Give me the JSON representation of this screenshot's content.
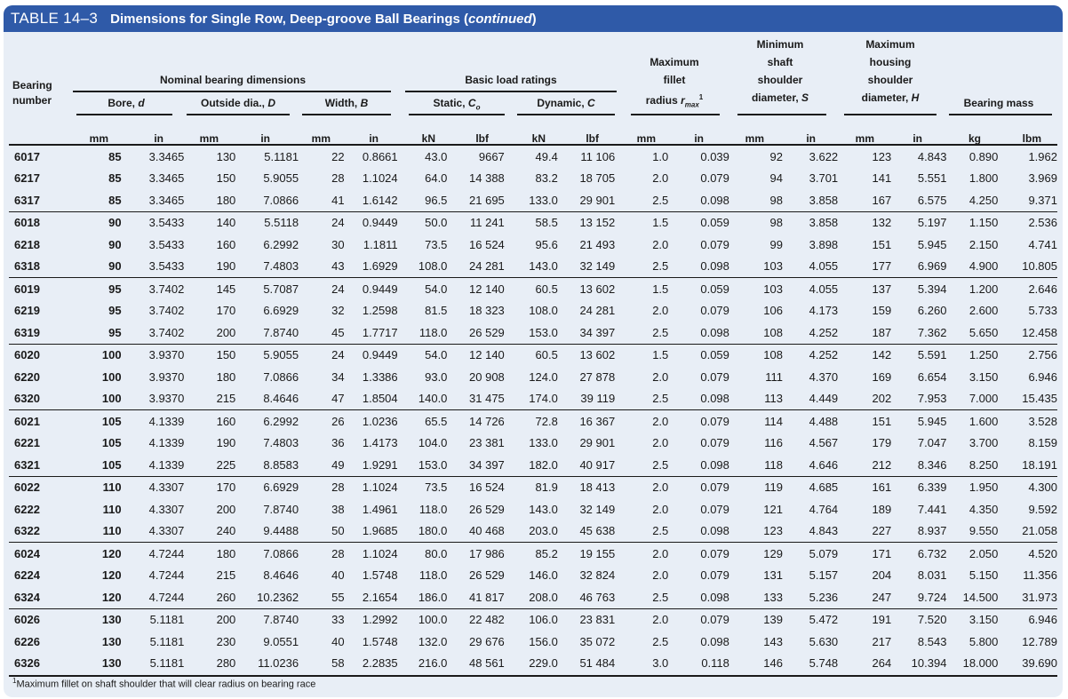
{
  "title": {
    "number": "TABLE 14–3",
    "text": "Dimensions for Single Row, Deep-groove Ball Bearings (",
    "italic": "continued",
    "close": ")"
  },
  "headers": {
    "bearing": "Bearing number",
    "nominal": "Nominal bearing dimensions",
    "bore": "Bore, d",
    "outside": "Outside dia., D",
    "width": "Width, B",
    "load": "Basic load ratings",
    "static": "Static, C0",
    "dynamic": "Dynamic, C",
    "fillet": "Maximum fillet radius rmax1",
    "shaft": "Minimum shaft shoulder diameter, S",
    "housing": "Maximum housing shoulder diameter, H",
    "mass": "Bearing mass"
  },
  "units": [
    "mm",
    "in",
    "mm",
    "in",
    "mm",
    "in",
    "kN",
    "lbf",
    "kN",
    "lbf",
    "mm",
    "in",
    "mm",
    "in",
    "mm",
    "in",
    "kg",
    "lbm"
  ],
  "rows": [
    [
      "6017",
      "85",
      "3.3465",
      "130",
      "5.1181",
      "22",
      "0.8661",
      "43.0",
      "9667",
      "49.4",
      "11 106",
      "1.0",
      "0.039",
      "92",
      "3.622",
      "123",
      "4.843",
      "0.890",
      "1.962"
    ],
    [
      "6217",
      "85",
      "3.3465",
      "150",
      "5.9055",
      "28",
      "1.1024",
      "64.0",
      "14 388",
      "83.2",
      "18 705",
      "2.0",
      "0.079",
      "94",
      "3.701",
      "141",
      "5.551",
      "1.800",
      "3.969"
    ],
    [
      "6317",
      "85",
      "3.3465",
      "180",
      "7.0866",
      "41",
      "1.6142",
      "96.5",
      "21 695",
      "133.0",
      "29 901",
      "2.5",
      "0.098",
      "98",
      "3.858",
      "167",
      "6.575",
      "4.250",
      "9.371"
    ],
    [
      "6018",
      "90",
      "3.5433",
      "140",
      "5.5118",
      "24",
      "0.9449",
      "50.0",
      "11 241",
      "58.5",
      "13 152",
      "1.5",
      "0.059",
      "98",
      "3.858",
      "132",
      "5.197",
      "1.150",
      "2.536"
    ],
    [
      "6218",
      "90",
      "3.5433",
      "160",
      "6.2992",
      "30",
      "1.1811",
      "73.5",
      "16 524",
      "95.6",
      "21 493",
      "2.0",
      "0.079",
      "99",
      "3.898",
      "151",
      "5.945",
      "2.150",
      "4.741"
    ],
    [
      "6318",
      "90",
      "3.5433",
      "190",
      "7.4803",
      "43",
      "1.6929",
      "108.0",
      "24 281",
      "143.0",
      "32 149",
      "2.5",
      "0.098",
      "103",
      "4.055",
      "177",
      "6.969",
      "4.900",
      "10.805"
    ],
    [
      "6019",
      "95",
      "3.7402",
      "145",
      "5.7087",
      "24",
      "0.9449",
      "54.0",
      "12 140",
      "60.5",
      "13 602",
      "1.5",
      "0.059",
      "103",
      "4.055",
      "137",
      "5.394",
      "1.200",
      "2.646"
    ],
    [
      "6219",
      "95",
      "3.7402",
      "170",
      "6.6929",
      "32",
      "1.2598",
      "81.5",
      "18 323",
      "108.0",
      "24 281",
      "2.0",
      "0.079",
      "106",
      "4.173",
      "159",
      "6.260",
      "2.600",
      "5.733"
    ],
    [
      "6319",
      "95",
      "3.7402",
      "200",
      "7.8740",
      "45",
      "1.7717",
      "118.0",
      "26 529",
      "153.0",
      "34 397",
      "2.5",
      "0.098",
      "108",
      "4.252",
      "187",
      "7.362",
      "5.650",
      "12.458"
    ],
    [
      "6020",
      "100",
      "3.9370",
      "150",
      "5.9055",
      "24",
      "0.9449",
      "54.0",
      "12 140",
      "60.5",
      "13 602",
      "1.5",
      "0.059",
      "108",
      "4.252",
      "142",
      "5.591",
      "1.250",
      "2.756"
    ],
    [
      "6220",
      "100",
      "3.9370",
      "180",
      "7.0866",
      "34",
      "1.3386",
      "93.0",
      "20 908",
      "124.0",
      "27 878",
      "2.0",
      "0.079",
      "111",
      "4.370",
      "169",
      "6.654",
      "3.150",
      "6.946"
    ],
    [
      "6320",
      "100",
      "3.9370",
      "215",
      "8.4646",
      "47",
      "1.8504",
      "140.0",
      "31 475",
      "174.0",
      "39 119",
      "2.5",
      "0.098",
      "113",
      "4.449",
      "202",
      "7.953",
      "7.000",
      "15.435"
    ],
    [
      "6021",
      "105",
      "4.1339",
      "160",
      "6.2992",
      "26",
      "1.0236",
      "65.5",
      "14 726",
      "72.8",
      "16 367",
      "2.0",
      "0.079",
      "114",
      "4.488",
      "151",
      "5.945",
      "1.600",
      "3.528"
    ],
    [
      "6221",
      "105",
      "4.1339",
      "190",
      "7.4803",
      "36",
      "1.4173",
      "104.0",
      "23 381",
      "133.0",
      "29 901",
      "2.0",
      "0.079",
      "116",
      "4.567",
      "179",
      "7.047",
      "3.700",
      "8.159"
    ],
    [
      "6321",
      "105",
      "4.1339",
      "225",
      "8.8583",
      "49",
      "1.9291",
      "153.0",
      "34 397",
      "182.0",
      "40 917",
      "2.5",
      "0.098",
      "118",
      "4.646",
      "212",
      "8.346",
      "8.250",
      "18.191"
    ],
    [
      "6022",
      "110",
      "4.3307",
      "170",
      "6.6929",
      "28",
      "1.1024",
      "73.5",
      "16 524",
      "81.9",
      "18 413",
      "2.0",
      "0.079",
      "119",
      "4.685",
      "161",
      "6.339",
      "1.950",
      "4.300"
    ],
    [
      "6222",
      "110",
      "4.3307",
      "200",
      "7.8740",
      "38",
      "1.4961",
      "118.0",
      "26 529",
      "143.0",
      "32 149",
      "2.0",
      "0.079",
      "121",
      "4.764",
      "189",
      "7.441",
      "4.350",
      "9.592"
    ],
    [
      "6322",
      "110",
      "4.3307",
      "240",
      "9.4488",
      "50",
      "1.9685",
      "180.0",
      "40 468",
      "203.0",
      "45 638",
      "2.5",
      "0.098",
      "123",
      "4.843",
      "227",
      "8.937",
      "9.550",
      "21.058"
    ],
    [
      "6024",
      "120",
      "4.7244",
      "180",
      "7.0866",
      "28",
      "1.1024",
      "80.0",
      "17 986",
      "85.2",
      "19 155",
      "2.0",
      "0.079",
      "129",
      "5.079",
      "171",
      "6.732",
      "2.050",
      "4.520"
    ],
    [
      "6224",
      "120",
      "4.7244",
      "215",
      "8.4646",
      "40",
      "1.5748",
      "118.0",
      "26 529",
      "146.0",
      "32 824",
      "2.0",
      "0.079",
      "131",
      "5.157",
      "204",
      "8.031",
      "5.150",
      "11.356"
    ],
    [
      "6324",
      "120",
      "4.7244",
      "260",
      "10.2362",
      "55",
      "2.1654",
      "186.0",
      "41 817",
      "208.0",
      "46 763",
      "2.5",
      "0.098",
      "133",
      "5.236",
      "247",
      "9.724",
      "14.500",
      "31.973"
    ],
    [
      "6026",
      "130",
      "5.1181",
      "200",
      "7.8740",
      "33",
      "1.2992",
      "100.0",
      "22 482",
      "106.0",
      "23 831",
      "2.0",
      "0.079",
      "139",
      "5.472",
      "191",
      "7.520",
      "3.150",
      "6.946"
    ],
    [
      "6226",
      "130",
      "5.1181",
      "230",
      "9.0551",
      "40",
      "1.5748",
      "132.0",
      "29 676",
      "156.0",
      "35 072",
      "2.5",
      "0.098",
      "143",
      "5.630",
      "217",
      "8.543",
      "5.800",
      "12.789"
    ],
    [
      "6326",
      "130",
      "5.1181",
      "280",
      "11.0236",
      "58",
      "2.2835",
      "216.0",
      "48 561",
      "229.0",
      "51 484",
      "3.0",
      "0.118",
      "146",
      "5.748",
      "264",
      "10.394",
      "18.000",
      "39.690"
    ]
  ],
  "footnote": "Maximum fillet on shaft shoulder that will clear radius on bearing race"
}
